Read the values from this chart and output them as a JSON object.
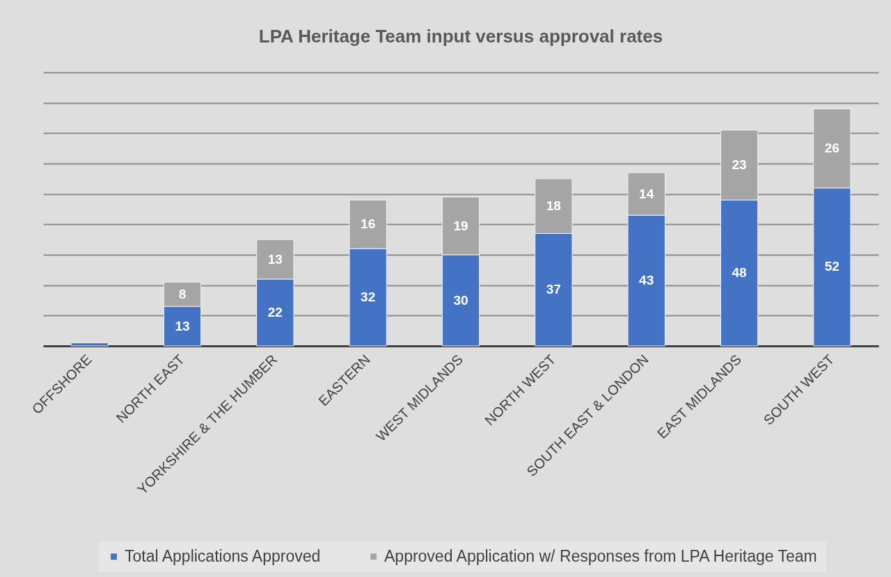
{
  "chart_data": {
    "type": "bar",
    "title": "LPA Heritage Team input versus approval rates",
    "categories": [
      "OFFSHORE",
      "NORTH EAST",
      "YORKSHIRE & THE HUMBER",
      "EASTERN",
      "WEST MIDLANDS",
      "NORTH WEST",
      "SOUTH EAST & LONDON",
      "EAST MIDLANDS",
      "SOUTH WEST"
    ],
    "stacked": true,
    "series": [
      {
        "name": "Total Applications Approved",
        "color": "#4472c4",
        "values": [
          1,
          13,
          22,
          32,
          30,
          37,
          43,
          48,
          52
        ],
        "value_labels": [
          null,
          "13",
          "22",
          "32",
          "30",
          "37",
          "43",
          "48",
          "52"
        ]
      },
      {
        "name": "Approved Application w/ Responses from LPA Heritage Team",
        "color": "#a5a5a5",
        "values": [
          null,
          8,
          13,
          16,
          19,
          18,
          14,
          23,
          26
        ],
        "value_labels": [
          null,
          "8",
          "13",
          "16",
          "19",
          "18",
          "14",
          "23",
          "26"
        ]
      }
    ],
    "ylim": [
      0,
      90
    ],
    "yticks": [
      {
        "value": 0,
        "label": null
      },
      {
        "value": 10,
        "label": null
      },
      {
        "value": 20,
        "label": null
      },
      {
        "value": 30,
        "label": null
      },
      {
        "value": 40,
        "label": null
      },
      {
        "value": 50,
        "label": null
      },
      {
        "value": 60,
        "label": null
      },
      {
        "value": 70,
        "label": null
      },
      {
        "value": 80,
        "label": null
      },
      {
        "value": 90,
        "label": null
      }
    ],
    "grid": "y",
    "legend": "bottom",
    "tick_labels": "x"
  }
}
